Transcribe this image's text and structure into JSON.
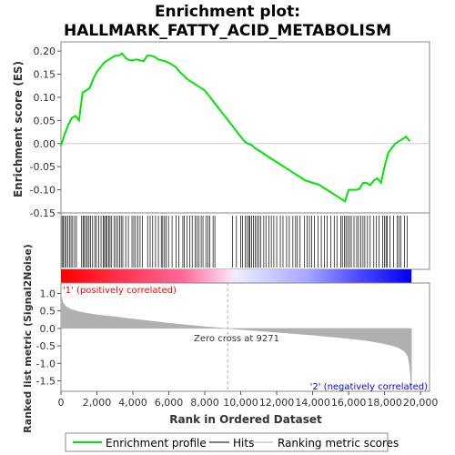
{
  "chart_data": {
    "type": "line",
    "title_line1": "Enrichment plot:",
    "title_line2": "HALLMARK_FATTY_ACID_METABOLISM",
    "top_panel": {
      "ylabel": "Enrichment score (ES)",
      "ylim": [
        -0.15,
        0.22
      ],
      "yticks": [
        "0.20",
        "0.15",
        "0.10",
        "0.05",
        "0.00",
        "-0.05",
        "-0.10",
        "-0.15"
      ],
      "series_color": "#00e600",
      "x": [
        0,
        200,
        400,
        600,
        800,
        1000,
        1200,
        1400,
        1600,
        1800,
        2000,
        2200,
        2400,
        2600,
        2800,
        3000,
        3200,
        3400,
        3600,
        3800,
        4000,
        4200,
        4400,
        4600,
        4800,
        5000,
        5200,
        5400,
        5600,
        5800,
        6000,
        6200,
        6400,
        6600,
        6800,
        7000,
        7200,
        7400,
        7600,
        7800,
        8000,
        8200,
        8400,
        8600,
        8800,
        9000,
        9200,
        9400,
        9600,
        9800,
        10000,
        10200,
        10400,
        10600,
        10800,
        11000,
        11200,
        11400,
        11600,
        11800,
        12000,
        12200,
        12400,
        12600,
        12800,
        13000,
        13200,
        13400,
        13600,
        13800,
        14000,
        14200,
        14400,
        14600,
        14800,
        15000,
        15200,
        15400,
        15600,
        15800,
        16000,
        16200,
        16400,
        16600,
        16800,
        17000,
        17200,
        17400,
        17600,
        17800,
        18000,
        18200,
        18400,
        18600,
        18800,
        19000,
        19200,
        19400
      ],
      "y": [
        -0.005,
        0.02,
        0.04,
        0.055,
        0.06,
        0.05,
        0.11,
        0.115,
        0.12,
        0.14,
        0.155,
        0.165,
        0.175,
        0.18,
        0.185,
        0.19,
        0.19,
        0.195,
        0.185,
        0.18,
        0.18,
        0.182,
        0.18,
        0.178,
        0.19,
        0.19,
        0.188,
        0.182,
        0.18,
        0.178,
        0.175,
        0.17,
        0.165,
        0.155,
        0.148,
        0.14,
        0.135,
        0.13,
        0.125,
        0.12,
        0.115,
        0.105,
        0.095,
        0.085,
        0.075,
        0.065,
        0.055,
        0.045,
        0.035,
        0.025,
        0.015,
        0.005,
        0.0,
        -0.003,
        -0.01,
        -0.015,
        -0.02,
        -0.025,
        -0.03,
        -0.035,
        -0.04,
        -0.045,
        -0.05,
        -0.055,
        -0.06,
        -0.065,
        -0.07,
        -0.075,
        -0.08,
        -0.082,
        -0.085,
        -0.087,
        -0.09,
        -0.095,
        -0.1,
        -0.105,
        -0.11,
        -0.115,
        -0.12,
        -0.125,
        -0.1,
        -0.1,
        -0.1,
        -0.098,
        -0.085,
        -0.085,
        -0.09,
        -0.08,
        -0.075,
        -0.085,
        -0.05,
        -0.02,
        -0.01,
        0.0,
        0.005,
        0.01,
        0.015,
        0.005
      ]
    },
    "hits_panel": {
      "hit_ranks": [
        60,
        130,
        210,
        290,
        380,
        470,
        560,
        650,
        760,
        860,
        1150,
        1230,
        1300,
        1390,
        1470,
        1560,
        1650,
        1760,
        1880,
        1970,
        2100,
        2230,
        2350,
        2420,
        2490,
        2560,
        2650,
        2730,
        2820,
        2950,
        3050,
        3150,
        3270,
        3350,
        3440,
        3600,
        3750,
        3950,
        4050,
        4150,
        4280,
        4400,
        4520,
        4820,
        4960,
        5100,
        5260,
        5420,
        5580,
        5660,
        5760,
        5850,
        5980,
        6180,
        6400,
        6560,
        6780,
        6860,
        7020,
        7160,
        7300,
        7460,
        7560,
        7680,
        7800,
        7900,
        8060,
        8180,
        8280,
        8460,
        8560,
        9550,
        9760,
        9990,
        10100,
        10250,
        10350,
        10450,
        10500,
        10600,
        10700,
        10800,
        10900,
        11000,
        11120,
        11280,
        11400,
        11560,
        11700,
        11840,
        12000,
        12200,
        12350,
        12550,
        12700,
        12900,
        13050,
        13150,
        13300,
        13550,
        13700,
        13820,
        13950,
        14100,
        14300,
        14480,
        14650,
        14800,
        15000,
        15200,
        15350,
        15560,
        15650,
        15760,
        15850,
        15950,
        16050,
        16150,
        16300,
        16450,
        16550,
        16680,
        16800,
        16900,
        17050,
        17200,
        17400,
        17550,
        17700,
        17900,
        18000,
        18080,
        18150,
        18300,
        18500,
        18700,
        18800,
        18900,
        19100,
        19250
      ]
    },
    "bottom_panel": {
      "ylabel": "Ranked list metric (Signal2Noise)",
      "xlabel": "Rank in Ordered Dataset",
      "ylim": [
        -1.8,
        1.3
      ],
      "yticks": [
        "1.0",
        "0.5",
        "0.0",
        "-0.5",
        "-1.0",
        "-1.5"
      ],
      "xlim": [
        0,
        20500
      ],
      "xticks": [
        "0",
        "2,000",
        "4,000",
        "6,000",
        "8,000",
        "10,000",
        "12,000",
        "14,000",
        "16,000",
        "18,000",
        "20,000"
      ],
      "x": [
        0,
        100,
        300,
        600,
        1000,
        1500,
        2000,
        3000,
        4000,
        5000,
        6000,
        7000,
        8000,
        9000,
        9271,
        10000,
        11000,
        12000,
        13000,
        14000,
        15000,
        16000,
        17000,
        17500,
        18000,
        18500,
        18800,
        19100,
        19300,
        19400,
        19500
      ],
      "y": [
        1.0,
        0.75,
        0.62,
        0.54,
        0.48,
        0.43,
        0.39,
        0.33,
        0.27,
        0.21,
        0.15,
        0.1,
        0.05,
        0.01,
        0.0,
        -0.03,
        -0.07,
        -0.11,
        -0.15,
        -0.19,
        -0.24,
        -0.29,
        -0.35,
        -0.39,
        -0.44,
        -0.5,
        -0.56,
        -0.65,
        -0.8,
        -1.1,
        -1.75
      ],
      "fill_color": "#b0b0b0",
      "zero_cross_label": "Zero cross at 9271",
      "zero_cross_rank": 9271,
      "pos_label": "'1' (positively correlated)",
      "neg_label": "'2' (negatively correlated)",
      "pos_color": "#ff0000",
      "neg_color": "#0000ff"
    },
    "legend": {
      "placement": "bottom",
      "items": [
        {
          "label": "Enrichment profile",
          "color": "#00e600",
          "style": "line"
        },
        {
          "label": "Hits",
          "color": "#000000",
          "style": "line"
        },
        {
          "label": "Ranking metric scores",
          "color": "#b0b0b0",
          "style": "line"
        }
      ]
    }
  }
}
